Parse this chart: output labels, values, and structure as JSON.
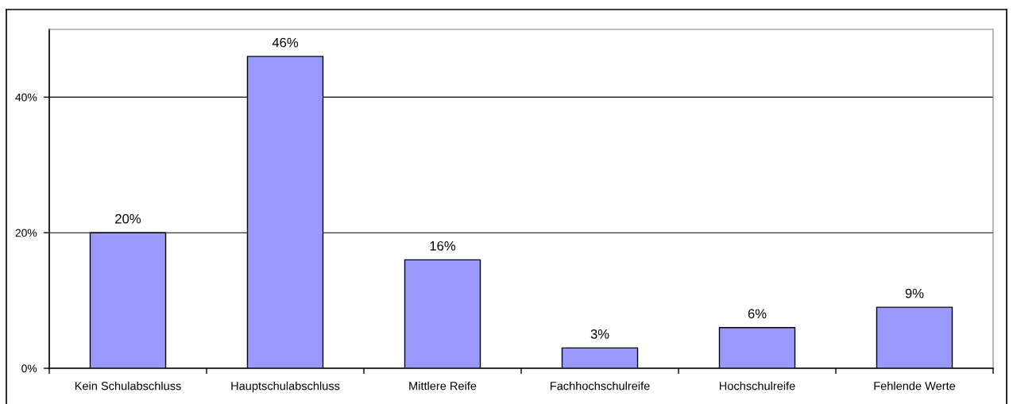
{
  "chart_data": {
    "type": "bar",
    "categories": [
      "Kein Schulabschluss",
      "Hauptschulabschluss",
      "Mittlere Reife",
      "Fachhochschulreife",
      "Hochschulreife",
      "Fehlende Werte"
    ],
    "values": [
      20,
      46,
      16,
      3,
      6,
      9
    ],
    "value_labels": [
      "20%",
      "46%",
      "16%",
      "3%",
      "6%",
      "9%"
    ],
    "color": "#9999ff",
    "ylim": [
      0,
      50
    ],
    "yticks": [
      {
        "value": 0,
        "label": "0%"
      },
      {
        "value": 20,
        "label": "20%"
      },
      {
        "value": 40,
        "label": "40%"
      }
    ],
    "grid": "y",
    "legend": false
  }
}
